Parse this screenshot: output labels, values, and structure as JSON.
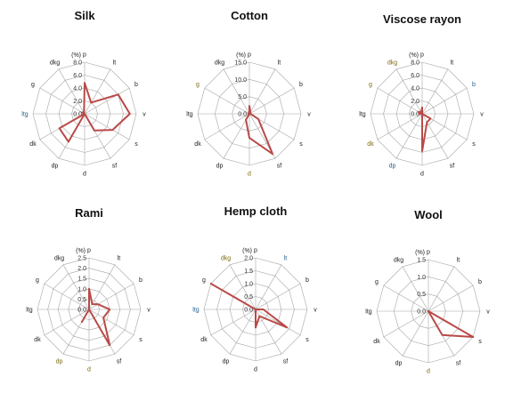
{
  "colors": {
    "series": "#b94a48",
    "grid": "#a6a6a6",
    "label_default": "#222222",
    "label_blue": "#1f5f8b",
    "label_olive": "#7a6a10"
  },
  "axes_order": [
    "p",
    "lt",
    "b",
    "v",
    "s",
    "sf",
    "d",
    "dp",
    "dk",
    "ltg",
    "g",
    "dkg"
  ],
  "unit": "(%)",
  "chart_data": [
    {
      "type": "radar",
      "title": "Silk",
      "rmax": 8.0,
      "ticks": [
        "0.0",
        "2.0",
        "4.0",
        "6.0",
        "8.0"
      ],
      "tick_values": [
        0,
        2,
        4,
        6,
        8
      ],
      "label_colors": {
        "ltg": "blue"
      },
      "values": {
        "p": 4.8,
        "lt": 2.0,
        "b": 6.0,
        "v": 7.0,
        "s": 5.0,
        "sf": 3.0,
        "d": 0.0,
        "dp": 5.0,
        "dk": 4.5,
        "ltg": 0.0,
        "g": 0.4,
        "dkg": 0.2
      }
    },
    {
      "type": "radar",
      "title": "Cotton",
      "rmax": 15.0,
      "ticks": [
        "0.0",
        "5.0",
        "10.0",
        "15.0"
      ],
      "tick_values": [
        0,
        5,
        10,
        15
      ],
      "label_colors": {
        "g": "olive",
        "d": "olive"
      },
      "values": {
        "p": 2.3,
        "lt": 0.6,
        "b": 0.0,
        "v": 0.3,
        "s": 3.0,
        "sf": 13.5,
        "d": 7.0,
        "dp": 2.0,
        "dk": 0.0,
        "ltg": 0.3,
        "g": 0.3,
        "dkg": 0.0
      }
    },
    {
      "type": "radar",
      "title": "Viscose rayon",
      "rmax": 8.0,
      "ticks": [
        "0.0",
        "2.0",
        "4.0",
        "6.0",
        "8.0"
      ],
      "tick_values": [
        0,
        2,
        4,
        6,
        8
      ],
      "label_colors": {
        "dkg": "olive",
        "g": "olive",
        "b": "blue",
        "dp": "blue",
        "dk": "olive"
      },
      "values": {
        "p": 1.0,
        "lt": 0.0,
        "b": 0.0,
        "v": 0.0,
        "s": 1.5,
        "sf": 1.5,
        "d": 5.8,
        "dp": 0.0,
        "dk": 0.0,
        "ltg": 0.5,
        "g": 0.6,
        "dkg": 0.3
      }
    },
    {
      "type": "radar",
      "title": "Rami",
      "rmax": 2.5,
      "ticks": [
        "0.0",
        "0.5",
        "1.0",
        "1.5",
        "2.0",
        "2.5"
      ],
      "tick_values": [
        0,
        0.5,
        1.0,
        1.5,
        2.0,
        2.5
      ],
      "label_colors": {
        "dp": "olive",
        "d": "olive"
      },
      "values": {
        "p": 1.0,
        "lt": 0.3,
        "b": 0.5,
        "v": 1.0,
        "s": 0.8,
        "sf": 2.0,
        "d": 0.0,
        "dp": 0.7,
        "dk": 0.0,
        "ltg": 0.0,
        "g": 0.0,
        "dkg": 0.0
      }
    },
    {
      "type": "radar",
      "title": "Hemp cloth",
      "rmax": 2.0,
      "ticks": [
        "0.0",
        "0.5",
        "1.0",
        "1.5",
        "2.0"
      ],
      "tick_values": [
        0,
        0.5,
        1.0,
        1.5,
        2.0
      ],
      "label_colors": {
        "lt": "blue",
        "ltg": "blue",
        "dkg": "olive"
      },
      "values": {
        "p": 0.0,
        "lt": 0.0,
        "b": 0.0,
        "v": 0.3,
        "s": 1.4,
        "sf": 0.3,
        "d": 0.7,
        "dp": 0.0,
        "dk": 0.0,
        "ltg": 0.0,
        "g": 2.0,
        "dkg": 0.0
      }
    },
    {
      "type": "radar",
      "title": "Wool",
      "rmax": 1.5,
      "ticks": [
        "0.0",
        "0.5",
        "1.0",
        "1.5"
      ],
      "tick_values": [
        0,
        0.5,
        1.0,
        1.5
      ],
      "label_colors": {
        "d": "olive",
        "ltg": "default"
      },
      "values": {
        "p": 0.0,
        "lt": 0.0,
        "b": 0.0,
        "v": 0.0,
        "s": 1.5,
        "sf": 0.8,
        "d": 0.0,
        "dp": 0.0,
        "dk": 0.0,
        "ltg": 0.0,
        "g": 0.0,
        "dkg": 0.0
      }
    }
  ]
}
